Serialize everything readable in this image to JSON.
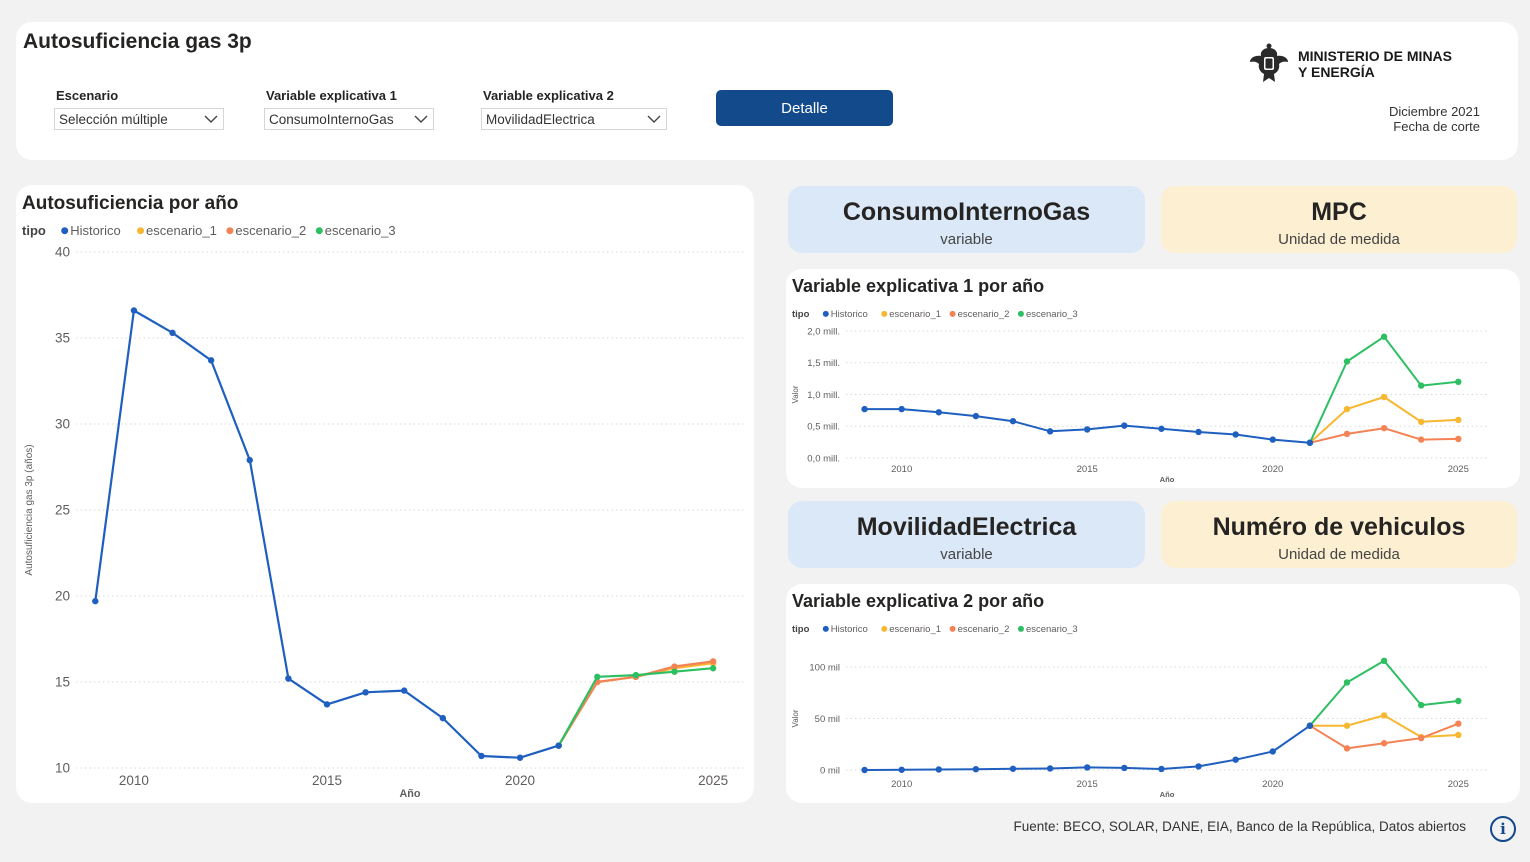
{
  "header": {
    "title": "Autosuficiencia gas 3p",
    "filters": [
      {
        "label": "Escenario",
        "value": "Selección múltiple"
      },
      {
        "label": "Variable explicativa 1",
        "value": "ConsumoInternoGas"
      },
      {
        "label": "Variable explicativa 2",
        "value": "MovilidadElectrica"
      }
    ],
    "detail_button": "Detalle",
    "ministry_line1": "MINISTERIO DE MINAS",
    "ministry_line2": "Y ENERGÍA",
    "cut_date": "Diciembre 2021",
    "cut_date_label": "Fecha de corte"
  },
  "kpis": [
    {
      "value": "ConsumoInternoGas",
      "label": "variable"
    },
    {
      "value": "MPC",
      "label": "Unidad de medida"
    },
    {
      "value": "MovilidadElectrica",
      "label": "variable"
    },
    {
      "value": "Numéro de vehiculos",
      "label": "Unidad de medida"
    }
  ],
  "footer": {
    "source": "Fuente: BECO, SOLAR, DANE, EIA, Banco de la República, Datos abiertos",
    "info_icon": "info-icon"
  },
  "colors": {
    "Historico": "#1f5fbf",
    "escenario_1": "#f7b731",
    "escenario_2": "#f38355",
    "escenario_3": "#2fbf63",
    "button": "#124a8c"
  },
  "chart_data": [
    {
      "id": "main",
      "type": "line",
      "title": "Autosuficiencia por año",
      "legend_title": "tipo",
      "xlabel": "Año",
      "ylabel": "Autosuficiencia gas 3p (años)",
      "xlim": [
        2009,
        2025
      ],
      "ylim": [
        10,
        40
      ],
      "xticks": [
        2010,
        2015,
        2020,
        2025
      ],
      "yticks": [
        10,
        15,
        20,
        25,
        30,
        35,
        40
      ],
      "ytick_labels": [
        "10",
        "15",
        "20",
        "25",
        "30",
        "35",
        "40"
      ],
      "grid": true,
      "legend_position": "top-left",
      "series": [
        {
          "name": "Historico",
          "x": [
            2009,
            2010,
            2011,
            2012,
            2013,
            2014,
            2015,
            2016,
            2017,
            2018,
            2019,
            2020,
            2021
          ],
          "y": [
            19.7,
            36.6,
            35.3,
            33.7,
            27.9,
            15.2,
            13.7,
            14.4,
            14.5,
            12.9,
            10.7,
            10.6,
            11.3
          ]
        },
        {
          "name": "escenario_1",
          "x": [
            2021,
            2022,
            2023,
            2024,
            2025
          ],
          "y": [
            11.3,
            15.0,
            15.3,
            15.8,
            16.1
          ]
        },
        {
          "name": "escenario_2",
          "x": [
            2021,
            2022,
            2023,
            2024,
            2025
          ],
          "y": [
            11.3,
            15.0,
            15.3,
            15.9,
            16.2
          ]
        },
        {
          "name": "escenario_3",
          "x": [
            2021,
            2022,
            2023,
            2024,
            2025
          ],
          "y": [
            11.3,
            15.3,
            15.4,
            15.6,
            15.8
          ]
        }
      ]
    },
    {
      "id": "v1",
      "type": "line",
      "title": "Variable explicativa 1 por año",
      "legend_title": "tipo",
      "xlabel": "Año",
      "ylabel": "Valor",
      "xlim": [
        2009,
        2025
      ],
      "ylim": [
        0,
        2000000
      ],
      "xticks": [
        2010,
        2015,
        2020,
        2025
      ],
      "yticks": [
        0,
        500000,
        1000000,
        1500000,
        2000000
      ],
      "ytick_labels": [
        "0,0 mill.",
        "0,5 mill.",
        "1,0 mill.",
        "1,5 mill.",
        "2,0 mill."
      ],
      "grid": true,
      "legend_position": "top-left",
      "series": [
        {
          "name": "Historico",
          "x": [
            2009,
            2010,
            2011,
            2012,
            2013,
            2014,
            2015,
            2016,
            2017,
            2018,
            2019,
            2020,
            2021
          ],
          "y": [
            770000,
            770000,
            720000,
            660000,
            580000,
            420000,
            450000,
            510000,
            460000,
            410000,
            370000,
            290000,
            240000
          ]
        },
        {
          "name": "escenario_1",
          "x": [
            2021,
            2022,
            2023,
            2024,
            2025
          ],
          "y": [
            240000,
            770000,
            960000,
            570000,
            600000
          ]
        },
        {
          "name": "escenario_2",
          "x": [
            2021,
            2022,
            2023,
            2024,
            2025
          ],
          "y": [
            240000,
            380000,
            470000,
            290000,
            300000
          ]
        },
        {
          "name": "escenario_3",
          "x": [
            2021,
            2022,
            2023,
            2024,
            2025
          ],
          "y": [
            240000,
            1520000,
            1910000,
            1140000,
            1200000
          ]
        }
      ]
    },
    {
      "id": "v2",
      "type": "line",
      "title": "Variable explicativa 2 por año",
      "legend_title": "tipo",
      "xlabel": "Año",
      "ylabel": "Valor",
      "xlim": [
        2009,
        2025
      ],
      "ylim": [
        0,
        100000
      ],
      "xticks": [
        2010,
        2015,
        2020,
        2025
      ],
      "yticks": [
        0,
        50000,
        100000
      ],
      "ytick_labels": [
        "0 mil",
        "50 mil",
        "100 mil"
      ],
      "grid": true,
      "legend_position": "top-left",
      "series": [
        {
          "name": "Historico",
          "x": [
            2009,
            2010,
            2011,
            2012,
            2013,
            2014,
            2015,
            2016,
            2017,
            2018,
            2019,
            2020,
            2021
          ],
          "y": [
            0,
            200,
            500,
            800,
            1200,
            1500,
            2500,
            2000,
            1000,
            3500,
            10000,
            18000,
            43000
          ]
        },
        {
          "name": "escenario_1",
          "x": [
            2021,
            2022,
            2023,
            2024,
            2025
          ],
          "y": [
            43000,
            43000,
            53000,
            32000,
            34000
          ]
        },
        {
          "name": "escenario_2",
          "x": [
            2021,
            2022,
            2023,
            2024,
            2025
          ],
          "y": [
            43000,
            21000,
            26000,
            31000,
            45000
          ]
        },
        {
          "name": "escenario_3",
          "x": [
            2021,
            2022,
            2023,
            2024,
            2025
          ],
          "y": [
            43000,
            85000,
            106000,
            63000,
            67000
          ]
        }
      ]
    }
  ]
}
